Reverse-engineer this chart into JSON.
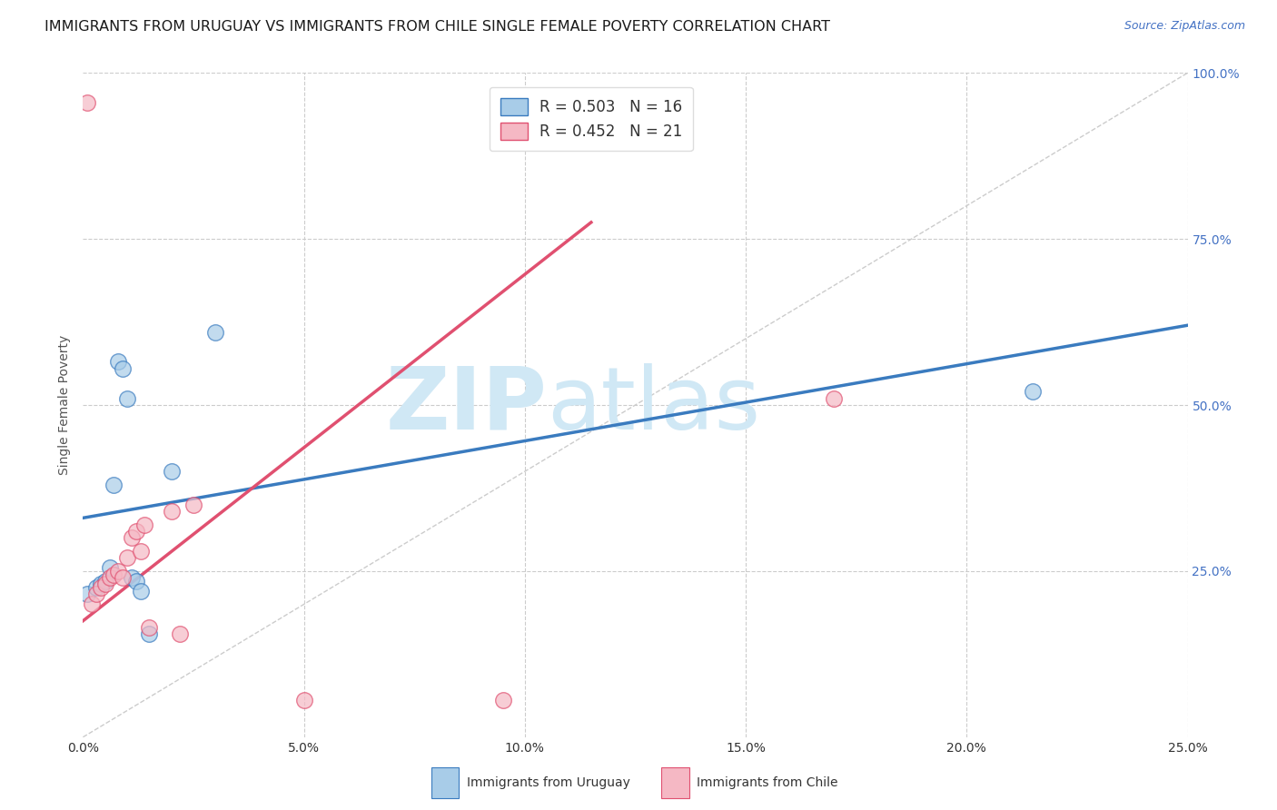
{
  "title": "IMMIGRANTS FROM URUGUAY VS IMMIGRANTS FROM CHILE SINGLE FEMALE POVERTY CORRELATION CHART",
  "source": "Source: ZipAtlas.com",
  "ylabel": "Single Female Poverty",
  "legend_label1": "Immigrants from Uruguay",
  "legend_label2": "Immigrants from Chile",
  "legend_R1": "R = 0.503",
  "legend_N1": "N = 16",
  "legend_R2": "R = 0.452",
  "legend_N2": "N = 21",
  "xlim": [
    0,
    0.25
  ],
  "ylim": [
    0,
    1.0
  ],
  "xtick_labels": [
    "0.0%",
    "5.0%",
    "10.0%",
    "15.0%",
    "20.0%",
    "25.0%"
  ],
  "xtick_vals": [
    0,
    0.05,
    0.1,
    0.15,
    0.2,
    0.25
  ],
  "ytick_labels": [
    "25.0%",
    "50.0%",
    "75.0%",
    "100.0%"
  ],
  "ytick_vals": [
    0.25,
    0.5,
    0.75,
    1.0
  ],
  "color_uruguay": "#a8cce8",
  "color_chile": "#f5b8c4",
  "color_line_uruguay": "#3a7bbf",
  "color_line_chile": "#e05070",
  "background_color": "#ffffff",
  "grid_color": "#cccccc",
  "uruguay_x": [
    0.001,
    0.003,
    0.004,
    0.005,
    0.006,
    0.007,
    0.008,
    0.009,
    0.01,
    0.011,
    0.012,
    0.013,
    0.015,
    0.02,
    0.03,
    0.215
  ],
  "uruguay_y": [
    0.215,
    0.225,
    0.23,
    0.235,
    0.255,
    0.38,
    0.565,
    0.555,
    0.51,
    0.24,
    0.235,
    0.22,
    0.155,
    0.4,
    0.61,
    0.52
  ],
  "chile_x": [
    0.001,
    0.002,
    0.003,
    0.004,
    0.005,
    0.006,
    0.007,
    0.008,
    0.009,
    0.01,
    0.011,
    0.012,
    0.013,
    0.014,
    0.015,
    0.02,
    0.022,
    0.025,
    0.05,
    0.095,
    0.17
  ],
  "chile_y": [
    0.955,
    0.2,
    0.215,
    0.225,
    0.23,
    0.24,
    0.245,
    0.25,
    0.24,
    0.27,
    0.3,
    0.31,
    0.28,
    0.32,
    0.165,
    0.34,
    0.155,
    0.35,
    0.055,
    0.055,
    0.51
  ],
  "marker_size": 160,
  "title_fontsize": 11.5,
  "axis_label_fontsize": 10,
  "tick_fontsize": 10,
  "legend_fontsize": 12,
  "source_fontsize": 9,
  "watermark_zip": "ZIP",
  "watermark_atlas": "atlas",
  "watermark_color": "#d0e8f5",
  "watermark_fontsize": 70,
  "blue_trend_x": [
    0.0,
    0.25
  ],
  "blue_trend_y": [
    0.33,
    0.62
  ],
  "pink_trend_x": [
    0.0,
    0.115
  ],
  "pink_trend_y": [
    0.175,
    0.775
  ]
}
